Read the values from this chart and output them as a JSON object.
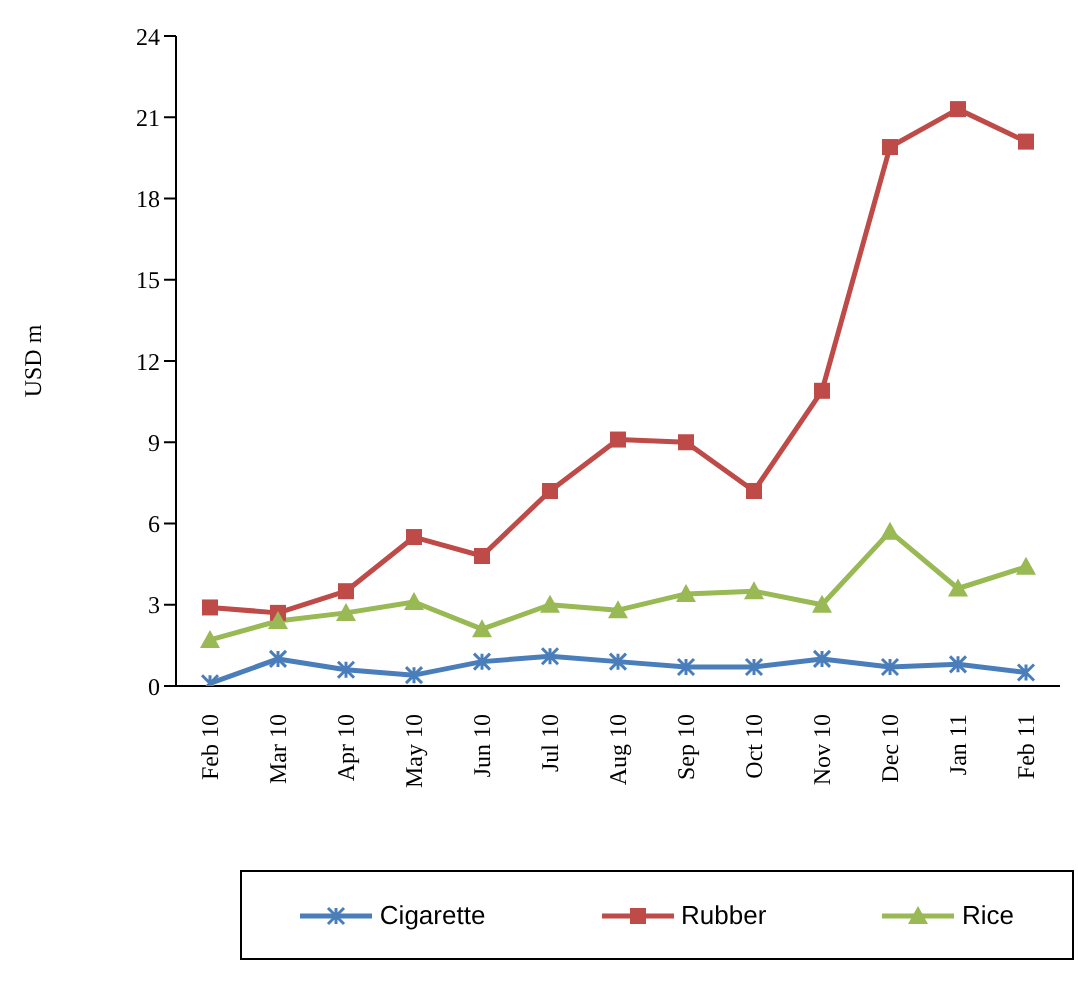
{
  "chart_data": {
    "type": "line",
    "ylabel": "USD m",
    "categories": [
      "Feb 10",
      "Mar 10",
      "Apr 10",
      "May 10",
      "Jun 10",
      "Jul 10",
      "Aug 10",
      "Sep 10",
      "Oct 10",
      "Nov 10",
      "Dec 10",
      "Jan 11",
      "Feb 11"
    ],
    "series": [
      {
        "name": "Cigarette",
        "color": "#4a7ebb",
        "marker": "cross",
        "values": [
          0.1,
          1.0,
          0.6,
          0.4,
          0.9,
          1.1,
          0.9,
          0.7,
          0.7,
          1.0,
          0.7,
          0.8,
          0.5
        ]
      },
      {
        "name": "Rubber",
        "color": "#be4b48",
        "marker": "square",
        "values": [
          2.9,
          2.7,
          3.5,
          5.5,
          4.8,
          7.2,
          9.1,
          9.0,
          7.2,
          10.9,
          19.9,
          21.3,
          20.1
        ]
      },
      {
        "name": "Rice",
        "color": "#98b954",
        "marker": "triangle",
        "values": [
          1.7,
          2.4,
          2.7,
          3.1,
          2.1,
          3.0,
          2.8,
          3.4,
          3.5,
          3.0,
          5.7,
          3.6,
          4.4
        ]
      }
    ],
    "ylim": [
      0,
      24
    ],
    "yticks": [
      0,
      3,
      6,
      9,
      12,
      15,
      18,
      21,
      24
    ],
    "legend": "bottom",
    "line_style": "solid"
  }
}
